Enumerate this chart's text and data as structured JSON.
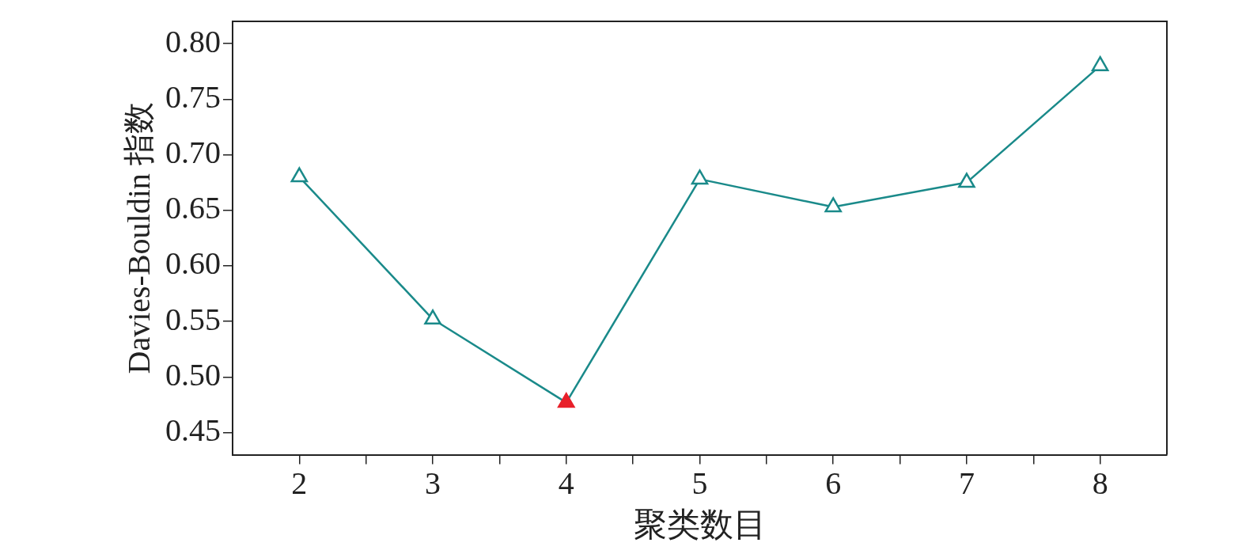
{
  "chart_data": {
    "type": "line",
    "xlabel": "聚类数目",
    "ylabel": "Davies-Bouldin 指数",
    "x": [
      2,
      3,
      4,
      5,
      6,
      7,
      8
    ],
    "series": [
      {
        "color": "#1a8a8a",
        "colors": [
          "#1a8a8a",
          "#1a8a8a",
          "#e8202a",
          "#1a8a8a",
          "#1a8a8a",
          "#1a8a8a",
          "#1a8a8a"
        ],
        "values": [
          0.68,
          0.552,
          0.477,
          0.678,
          0.653,
          0.675,
          0.78
        ]
      }
    ],
    "xlim": [
      1.5,
      8.5
    ],
    "xticks": [
      2,
      {
        "value": 2.5,
        "label": null
      },
      3,
      {
        "value": 3.5,
        "label": null
      },
      4,
      {
        "value": 4.5,
        "label": null
      },
      5,
      {
        "value": 5.5,
        "label": null
      },
      6,
      {
        "value": 6.5,
        "label": null
      },
      7,
      {
        "value": 7.5,
        "label": null
      },
      8
    ],
    "ylim": [
      0.43,
      0.82
    ],
    "yticks": [
      {
        "value": 0.45,
        "label": "0.45"
      },
      {
        "value": 0.5,
        "label": "0.50"
      },
      {
        "value": 0.55,
        "label": "0.55"
      },
      {
        "value": 0.6,
        "label": "0.60"
      },
      {
        "value": 0.65,
        "label": "0.65"
      },
      {
        "value": 0.7,
        "label": "0.70"
      },
      {
        "value": 0.75,
        "label": "0.75"
      },
      {
        "value": 0.8,
        "label": "0.80"
      }
    ],
    "grid": false,
    "legend": false,
    "marker": "triangle",
    "line_style": "solid"
  }
}
